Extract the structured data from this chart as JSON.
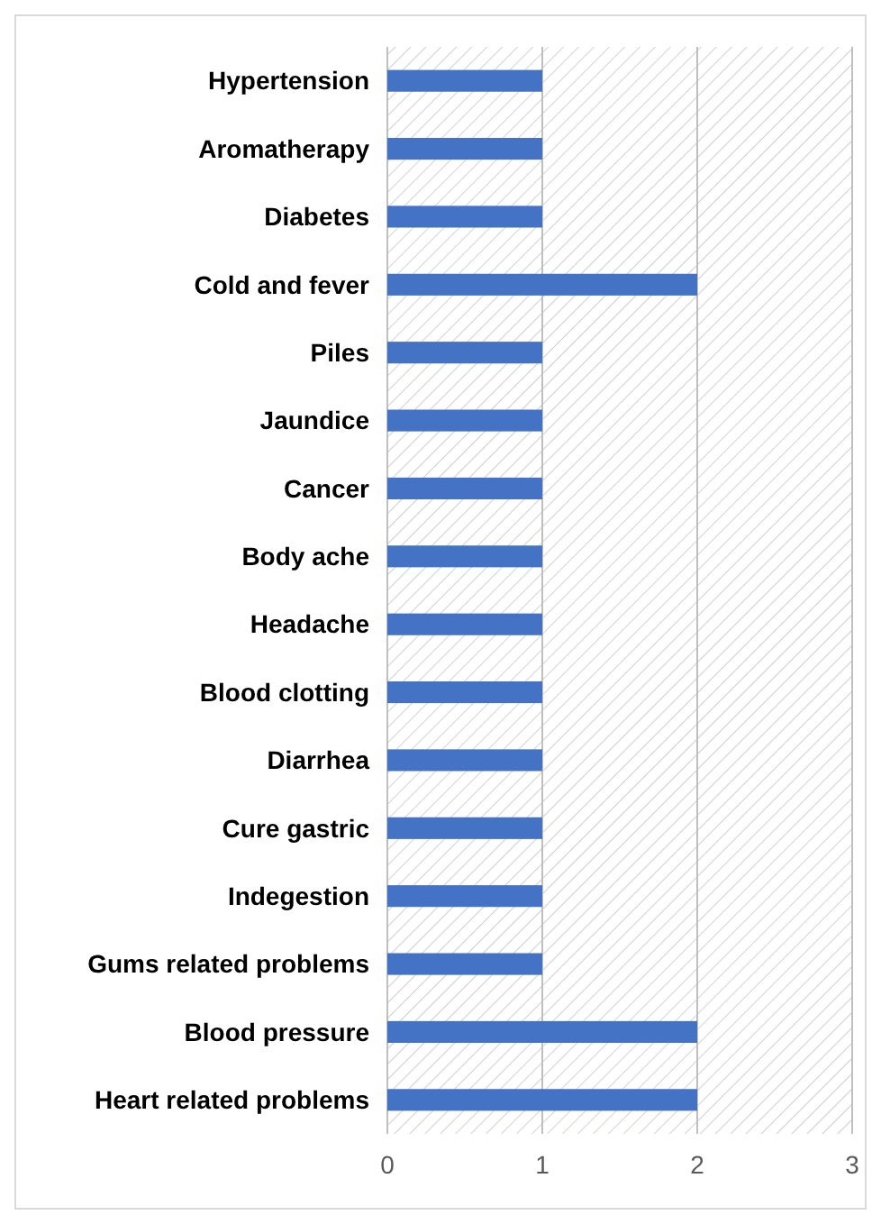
{
  "chart_data": {
    "type": "bar",
    "orientation": "horizontal",
    "categories": [
      "Hypertension",
      "Aromatherapy",
      "Diabetes",
      "Cold and fever",
      "Piles",
      "Jaundice",
      "Cancer",
      "Body ache",
      "Headache",
      "Blood clotting",
      "Diarrhea",
      "Cure gastric",
      "Indegestion",
      "Gums related problems",
      "Blood pressure",
      "Heart related problems"
    ],
    "values": [
      1,
      1,
      1,
      2,
      1,
      1,
      1,
      1,
      1,
      1,
      1,
      1,
      1,
      1,
      2,
      2
    ],
    "color": "#4472c4",
    "xlim": [
      0,
      3
    ],
    "xticks": [
      0,
      1,
      2,
      3
    ],
    "grid": "x"
  }
}
